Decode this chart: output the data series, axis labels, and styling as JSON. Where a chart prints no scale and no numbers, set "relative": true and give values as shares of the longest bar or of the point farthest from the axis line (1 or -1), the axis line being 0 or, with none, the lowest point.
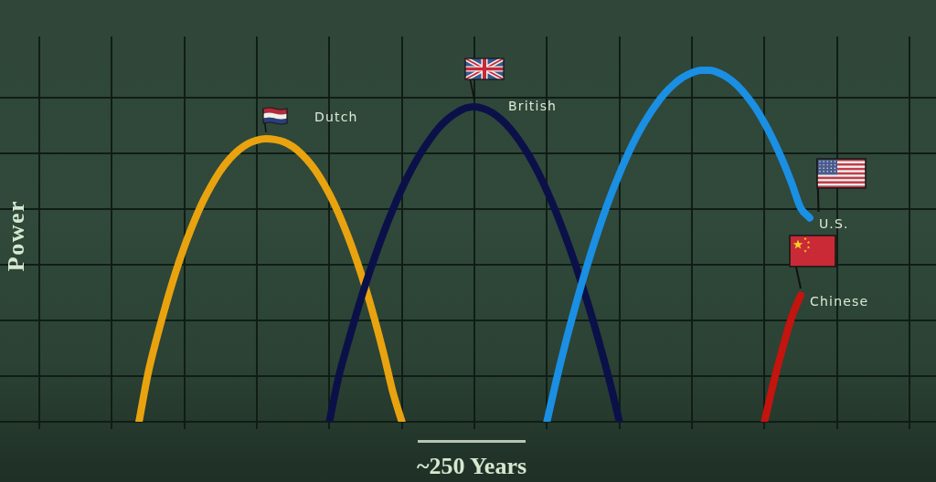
{
  "chart_data": {
    "type": "line",
    "xlabel": "~250 Years",
    "ylabel": "Power",
    "relative": true,
    "grid": true,
    "tick_labels": false,
    "categories": [
      null,
      null,
      null,
      null,
      null,
      null,
      null,
      null,
      null,
      null,
      null,
      null,
      null,
      null,
      null,
      null,
      null,
      null,
      null,
      null,
      null,
      null,
      null,
      null,
      null,
      null,
      null,
      null,
      null,
      null,
      null,
      null,
      null,
      null,
      null,
      null,
      null,
      null,
      null,
      null,
      null,
      null,
      null,
      null,
      null,
      null,
      null,
      null,
      null,
      null,
      null,
      null,
      null,
      null,
      null,
      null,
      null,
      null,
      null,
      null,
      null,
      null,
      null,
      null,
      null,
      null,
      null,
      null,
      null,
      null,
      null,
      null,
      null,
      null,
      null,
      null,
      null,
      null,
      null,
      null,
      null,
      null,
      null,
      null,
      null,
      null,
      null,
      null,
      null,
      null,
      null,
      null,
      null,
      null,
      null,
      null,
      null
    ],
    "series": [
      {
        "name": "Dutch",
        "color": "#e9a30f",
        "values": [
          null,
          null,
          null,
          null,
          null,
          null,
          null,
          null,
          null,
          null,
          null,
          0,
          0.138,
          0.242,
          0.336,
          0.422,
          0.498,
          0.565,
          0.624,
          0.673,
          0.715,
          0.748,
          0.773,
          0.791,
          0.801,
          0.805,
          0.803,
          0.796,
          0.782,
          0.76,
          0.731,
          0.694,
          0.648,
          0.594,
          0.531,
          0.46,
          0.38,
          0.291,
          0.193,
          0.085,
          0,
          null,
          null,
          null,
          null,
          null,
          null,
          null,
          null,
          null,
          null,
          null,
          null,
          null,
          null,
          null,
          null,
          null,
          null,
          null,
          null,
          null,
          null,
          null,
          null,
          null,
          null,
          null,
          null,
          null,
          null,
          null,
          null,
          null,
          null,
          null,
          null,
          null,
          null,
          null,
          null,
          null,
          null,
          null,
          null,
          null,
          null,
          null,
          null,
          null,
          null,
          null,
          null,
          null,
          null,
          null,
          null
        ]
      },
      {
        "name": "British",
        "color": "#0b1148",
        "values": [
          null,
          null,
          null,
          null,
          null,
          null,
          null,
          null,
          null,
          null,
          null,
          null,
          null,
          null,
          null,
          null,
          null,
          null,
          null,
          null,
          null,
          null,
          null,
          null,
          null,
          null,
          null,
          null,
          null,
          null,
          null,
          null,
          0,
          0.125,
          0.22,
          0.309,
          0.392,
          0.468,
          0.539,
          0.604,
          0.663,
          0.715,
          0.761,
          0.8,
          0.834,
          0.86,
          0.879,
          0.892,
          0.896,
          0.891,
          0.879,
          0.859,
          0.832,
          0.798,
          0.758,
          0.711,
          0.657,
          0.597,
          0.53,
          0.458,
          0.379,
          0.295,
          0.204,
          0.107,
          0,
          null,
          null,
          null,
          null,
          null,
          null,
          null,
          null,
          null,
          null,
          null,
          null,
          null,
          null,
          null,
          null,
          null,
          null,
          null,
          null,
          null,
          null,
          null,
          null,
          null,
          null,
          null,
          null,
          null,
          null,
          null,
          null
        ]
      },
      {
        "name": "U.S.",
        "color": "#1a8fe3",
        "values": [
          null,
          null,
          null,
          null,
          null,
          null,
          null,
          null,
          null,
          null,
          null,
          null,
          null,
          null,
          null,
          null,
          null,
          null,
          null,
          null,
          null,
          null,
          null,
          null,
          null,
          null,
          null,
          null,
          null,
          null,
          null,
          null,
          null,
          null,
          null,
          null,
          null,
          null,
          null,
          null,
          null,
          null,
          null,
          null,
          null,
          null,
          null,
          null,
          null,
          null,
          null,
          null,
          null,
          null,
          null,
          null,
          0,
          0.114,
          0.219,
          0.316,
          0.407,
          0.491,
          0.569,
          0.641,
          0.706,
          0.765,
          0.817,
          0.862,
          0.901,
          0.934,
          0.96,
          0.98,
          0.993,
          1,
          1,
          0.992,
          0.978,
          0.957,
          0.928,
          0.893,
          0.85,
          0.8,
          0.743,
          0.679,
          0.608,
          0.58,
          null,
          null,
          null,
          null,
          null,
          null,
          null,
          null,
          null,
          null,
          null
        ]
      },
      {
        "name": "Chinese",
        "color": "#c4140e",
        "values": [
          null,
          null,
          null,
          null,
          null,
          null,
          null,
          null,
          null,
          null,
          null,
          null,
          null,
          null,
          null,
          null,
          null,
          null,
          null,
          null,
          null,
          null,
          null,
          null,
          null,
          null,
          null,
          null,
          null,
          null,
          null,
          null,
          null,
          null,
          null,
          null,
          null,
          null,
          null,
          null,
          null,
          null,
          null,
          null,
          null,
          null,
          null,
          null,
          null,
          null,
          null,
          null,
          null,
          null,
          null,
          null,
          null,
          null,
          null,
          null,
          null,
          null,
          null,
          null,
          null,
          null,
          null,
          null,
          null,
          null,
          null,
          null,
          null,
          null,
          null,
          null,
          null,
          null,
          null,
          null,
          0,
          0.111,
          0.209,
          0.297,
          0.36,
          null,
          null,
          null,
          null,
          null,
          null,
          null,
          null,
          null,
          null,
          null,
          null
        ]
      }
    ]
  }
}
